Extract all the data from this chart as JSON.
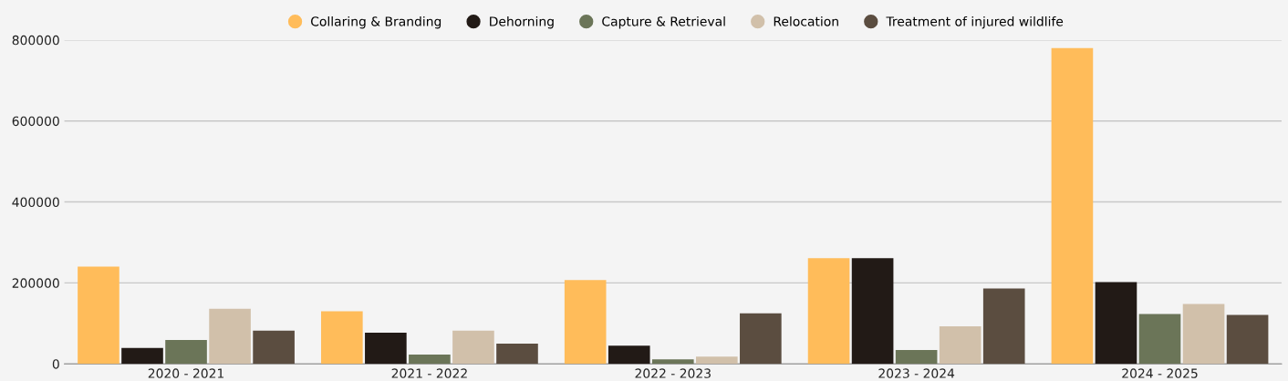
{
  "chart_data": {
    "type": "bar",
    "categories": [
      "2020 - 2021",
      "2021 - 2022",
      "2022 - 2023",
      "2023 - 2024",
      "2024 - 2025"
    ],
    "series": [
      {
        "name": "Collaring & Branding",
        "color": "#ffbc5a",
        "values": [
          240000,
          130000,
          207000,
          261000,
          780000
        ]
      },
      {
        "name": "Dehorning",
        "color": "#221a16",
        "values": [
          39000,
          77000,
          45000,
          261000,
          202000
        ]
      },
      {
        "name": "Capture & Retrieval",
        "color": "#6b7558",
        "values": [
          59000,
          23000,
          11000,
          34000,
          123000
        ]
      },
      {
        "name": "Relocation",
        "color": "#d1c0aa",
        "values": [
          136000,
          82000,
          18000,
          93000,
          148000
        ]
      },
      {
        "name": "Treatment of injured wildlife",
        "color": "#5b4d40",
        "values": [
          82000,
          50000,
          125000,
          186000,
          121000
        ]
      }
    ],
    "ylim": [
      0,
      800000
    ],
    "yticks": [
      0,
      200000,
      400000,
      600000,
      800000
    ],
    "grid": "y",
    "legend": "top"
  }
}
